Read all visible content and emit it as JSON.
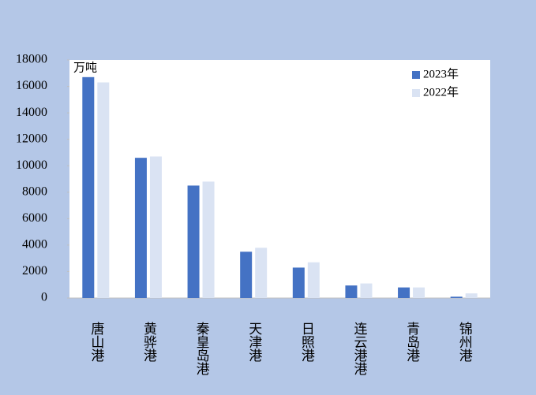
{
  "chart_data": {
    "type": "bar",
    "annotation": "万吨",
    "categories": [
      "唐山港",
      "黄骅港",
      "秦皇岛港",
      "天津港",
      "日照港",
      "连云港港",
      "青岛港",
      "锦州港"
    ],
    "series": [
      {
        "name": "2023年",
        "color": "#4472c4",
        "values": [
          16700,
          10600,
          8500,
          3500,
          2300,
          950,
          800,
          100
        ]
      },
      {
        "name": "2022年",
        "color": "#dae3f3",
        "values": [
          16300,
          10700,
          8800,
          3800,
          2700,
          1100,
          800,
          350
        ]
      }
    ],
    "ylim": [
      0,
      18000
    ],
    "yticks": [
      0,
      2000,
      4000,
      6000,
      8000,
      10000,
      12000,
      14000,
      16000,
      18000
    ],
    "grid": false,
    "legend": "upper right"
  }
}
